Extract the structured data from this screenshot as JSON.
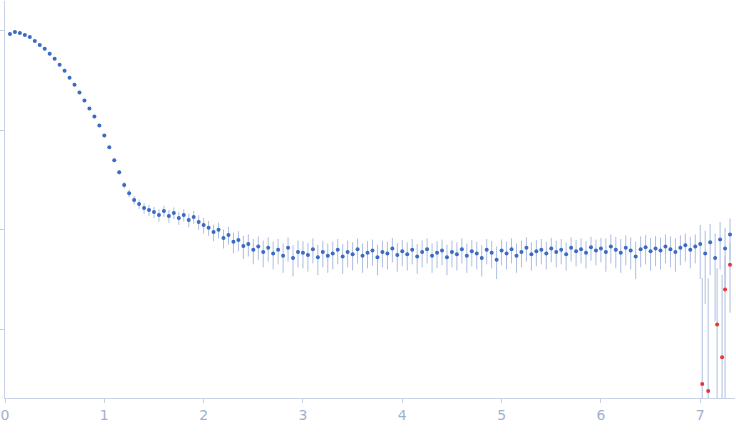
{
  "chart_data": {
    "type": "scatter",
    "log": "y",
    "tick_labels": "x",
    "grid": false,
    "xlim": [
      0,
      7.35
    ],
    "xticks": [
      0,
      1,
      2,
      3,
      4,
      5,
      6,
      7
    ],
    "ylim": [
      0.000204,
      2
    ],
    "yticks": [
      0.001,
      0.01,
      0.1,
      1
    ],
    "series": [
      {
        "color": "#3b6bc4",
        "marker": "circle",
        "x": [
          0.05,
          0.1,
          0.15,
          0.2,
          0.25,
          0.3,
          0.35,
          0.4,
          0.45,
          0.5,
          0.55,
          0.6,
          0.65,
          0.7,
          0.75,
          0.8,
          0.85,
          0.9,
          0.95,
          1.0,
          1.05,
          1.1,
          1.15,
          1.2,
          1.25,
          1.3,
          1.35,
          1.4,
          1.45,
          1.5,
          1.55,
          1.6,
          1.65,
          1.7,
          1.75,
          1.8,
          1.85,
          1.9,
          1.95,
          2.0,
          2.05,
          2.1,
          2.15,
          2.2,
          2.25,
          2.3,
          2.35,
          2.4,
          2.45,
          2.5,
          2.55,
          2.6,
          2.65,
          2.7,
          2.75,
          2.8,
          2.85,
          2.9,
          2.95,
          3.0,
          3.05,
          3.1,
          3.15,
          3.2,
          3.25,
          3.3,
          3.35,
          3.4,
          3.45,
          3.5,
          3.55,
          3.6,
          3.65,
          3.7,
          3.75,
          3.8,
          3.85,
          3.9,
          3.95,
          4.0,
          4.05,
          4.1,
          4.15,
          4.2,
          4.25,
          4.3,
          4.35,
          4.4,
          4.45,
          4.5,
          4.55,
          4.6,
          4.65,
          4.7,
          4.75,
          4.8,
          4.85,
          4.9,
          4.95,
          5.0,
          5.05,
          5.1,
          5.15,
          5.2,
          5.25,
          5.3,
          5.35,
          5.4,
          5.45,
          5.5,
          5.55,
          5.6,
          5.65,
          5.7,
          5.75,
          5.8,
          5.85,
          5.9,
          5.95,
          6.0,
          6.05,
          6.1,
          6.15,
          6.2,
          6.25,
          6.3,
          6.35,
          6.4,
          6.45,
          6.5,
          6.55,
          6.6,
          6.65,
          6.7,
          6.75,
          6.8,
          6.85,
          6.9,
          6.95,
          7.0,
          7.05,
          7.1,
          7.15,
          7.2,
          7.25,
          7.3
        ],
        "values": [
          0.933,
          0.977,
          0.955,
          0.912,
          0.871,
          0.794,
          0.724,
          0.661,
          0.589,
          0.525,
          0.457,
          0.398,
          0.339,
          0.288,
          0.24,
          0.2,
          0.166,
          0.138,
          0.112,
          0.0891,
          0.0676,
          0.0501,
          0.038,
          0.0282,
          0.0234,
          0.02,
          0.0182,
          0.0166,
          0.0158,
          0.0151,
          0.0141,
          0.0155,
          0.0138,
          0.0148,
          0.0132,
          0.0141,
          0.0126,
          0.0135,
          0.012,
          0.0112,
          0.0105,
          0.0095,
          0.01,
          0.0083,
          0.0089,
          0.0076,
          0.0079,
          0.0069,
          0.0072,
          0.0063,
          0.0068,
          0.006,
          0.0066,
          0.0058,
          0.0063,
          0.0055,
          0.0066,
          0.0052,
          0.006,
          0.0059,
          0.0056,
          0.0064,
          0.0053,
          0.006,
          0.0055,
          0.0058,
          0.0063,
          0.0054,
          0.006,
          0.0057,
          0.0064,
          0.0055,
          0.0059,
          0.0062,
          0.0053,
          0.006,
          0.0058,
          0.0065,
          0.0056,
          0.0061,
          0.0057,
          0.0063,
          0.0054,
          0.006,
          0.0064,
          0.0055,
          0.0059,
          0.0062,
          0.0053,
          0.006,
          0.0057,
          0.0064,
          0.0055,
          0.0061,
          0.0058,
          0.0052,
          0.0063,
          0.0059,
          0.005,
          0.0062,
          0.0058,
          0.0064,
          0.0055,
          0.006,
          0.0066,
          0.0057,
          0.0061,
          0.0063,
          0.0058,
          0.0065,
          0.006,
          0.0063,
          0.0057,
          0.0066,
          0.0061,
          0.0064,
          0.0059,
          0.0067,
          0.0062,
          0.0065,
          0.006,
          0.0068,
          0.0063,
          0.0059,
          0.0066,
          0.0062,
          0.0054,
          0.0064,
          0.0067,
          0.0061,
          0.0065,
          0.0062,
          0.0068,
          0.0064,
          0.006,
          0.0066,
          0.007,
          0.0063,
          0.0068,
          0.0072,
          0.0058,
          0.0075,
          0.0052,
          0.008,
          0.0065,
          0.009
        ],
        "errors": [
          0.01,
          0.005,
          0.005,
          0.005,
          0.005,
          0.005,
          0.005,
          0.005,
          0.005,
          0.005,
          0.005,
          0.005,
          0.005,
          0.004,
          0.004,
          0.004,
          0.003,
          0.003,
          0.003,
          0.002,
          0.002,
          0.002,
          0.002,
          0.002,
          0.002,
          0.002,
          0.002,
          0.002,
          0.002,
          0.002,
          0.002,
          0.002,
          0.002,
          0.002,
          0.002,
          0.002,
          0.002,
          0.002,
          0.002,
          0.002,
          0.0018,
          0.0018,
          0.0018,
          0.0018,
          0.0018,
          0.0018,
          0.0018,
          0.0018,
          0.0018,
          0.0018,
          0.0018,
          0.0018,
          0.0018,
          0.0018,
          0.0018,
          0.0018,
          0.0018,
          0.0018,
          0.0018,
          0.0018,
          0.0018,
          0.0018,
          0.0018,
          0.0018,
          0.0018,
          0.0018,
          0.0018,
          0.0018,
          0.0018,
          0.0018,
          0.0018,
          0.0018,
          0.0018,
          0.0018,
          0.0018,
          0.0018,
          0.0018,
          0.0018,
          0.0018,
          0.0018,
          0.0018,
          0.0018,
          0.0018,
          0.0018,
          0.0018,
          0.0018,
          0.0018,
          0.0018,
          0.0018,
          0.0018,
          0.0018,
          0.0018,
          0.0018,
          0.0018,
          0.0018,
          0.0018,
          0.0018,
          0.0018,
          0.0018,
          0.0018,
          0.0018,
          0.0018,
          0.0018,
          0.0018,
          0.0018,
          0.0018,
          0.0018,
          0.0018,
          0.0018,
          0.0018,
          0.0018,
          0.0018,
          0.0018,
          0.0018,
          0.0018,
          0.0018,
          0.0018,
          0.0018,
          0.0018,
          0.0018,
          0.0022,
          0.0022,
          0.0022,
          0.0022,
          0.0022,
          0.0022,
          0.0022,
          0.0022,
          0.0022,
          0.0022,
          0.0022,
          0.0022,
          0.0022,
          0.0022,
          0.0022,
          0.0022,
          0.0022,
          0.0022,
          0.0022,
          0.004,
          0.004,
          0.004,
          0.004,
          0.004,
          0.004,
          0.004
        ]
      },
      {
        "color": "#e8343a",
        "marker": "circle",
        "x": [
          7.02,
          7.08,
          7.17,
          7.22,
          7.25,
          7.3
        ],
        "values": [
          0.000282,
          0.00024,
          0.00112,
          0.000525,
          0.00251,
          0.00447
        ],
        "errors": [
          0.003,
          0.003,
          0.003,
          0.003,
          0.003,
          0.003
        ]
      }
    ]
  }
}
